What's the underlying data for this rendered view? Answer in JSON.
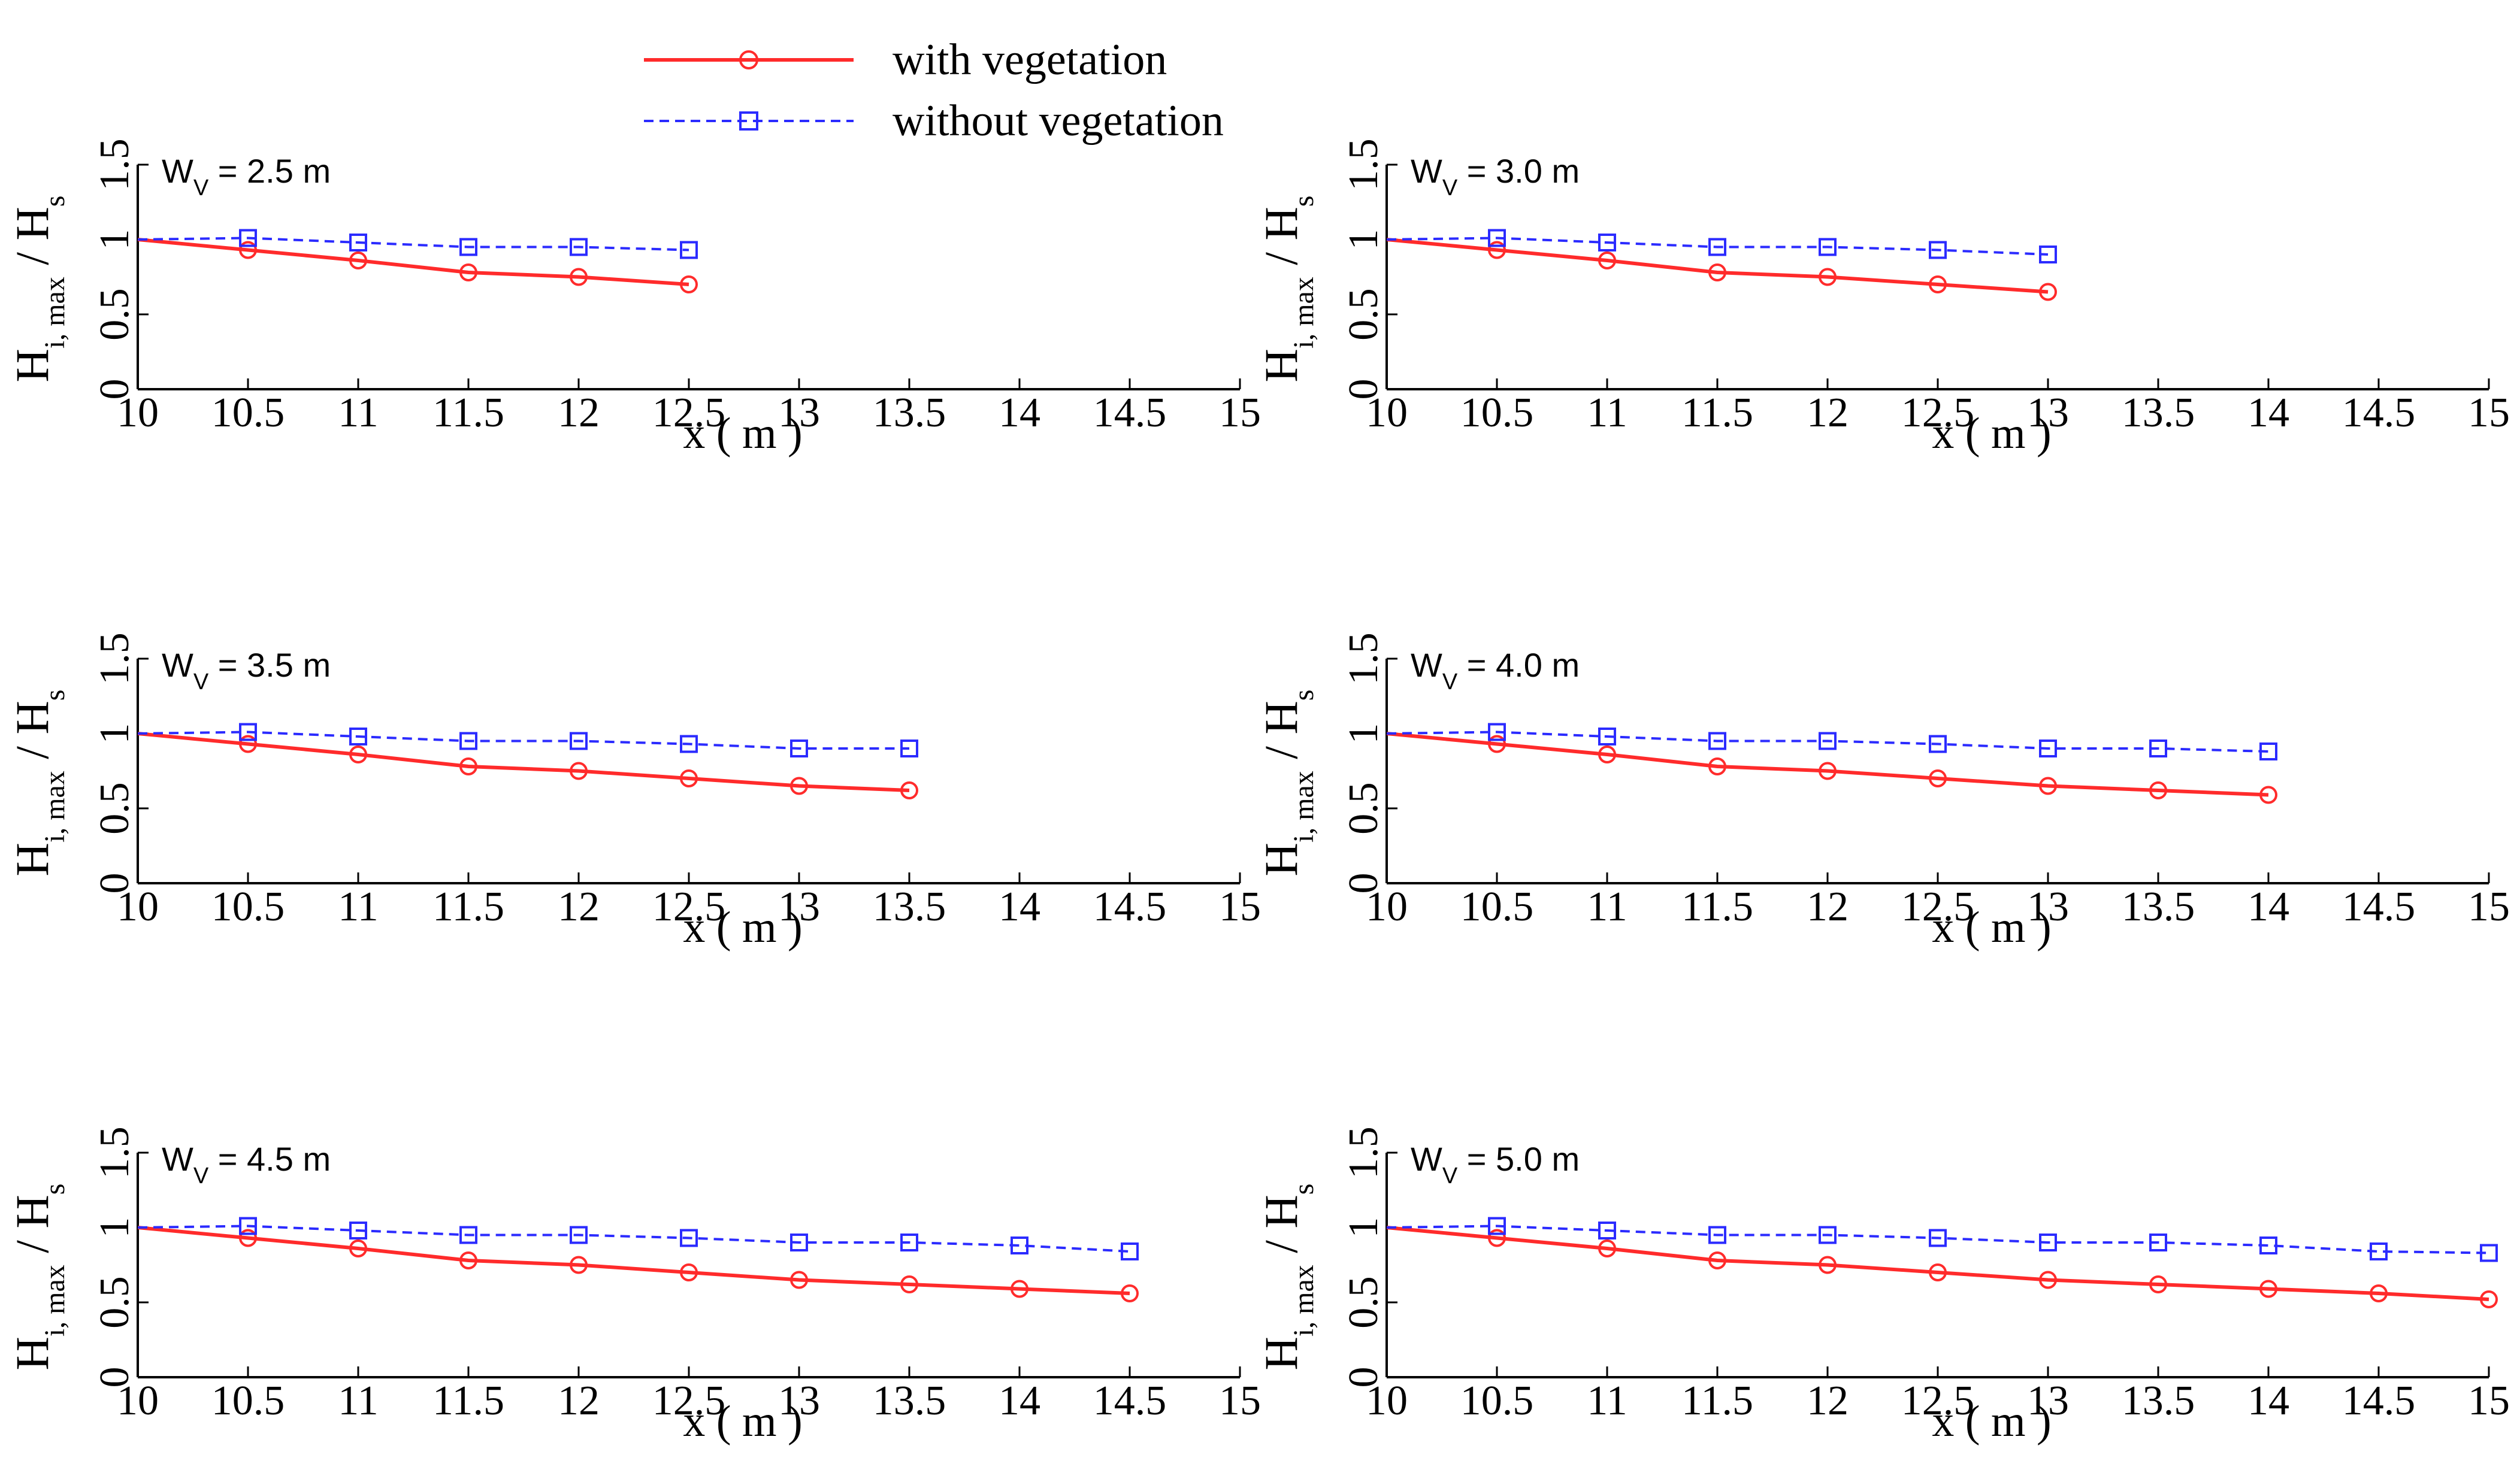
{
  "chart_data": {
    "type": "line",
    "legend": {
      "position": "top",
      "entries": [
        {
          "name": "with vegetation",
          "color": "#ff2b2b",
          "marker": "circle",
          "line": "solid"
        },
        {
          "name": "without vegetation",
          "color": "#2b2bff",
          "marker": "square",
          "line": "dashed"
        }
      ]
    },
    "panels": [
      {
        "title_main": "W",
        "title_sub": "V",
        "title_value": " = 2.5 m",
        "xlabel": "x ( m )",
        "ylabel_main": "H",
        "ylabel_sub": "i, max",
        "ylabel_mid": " / H",
        "ylabel_sub2": "s",
        "xlim": [
          10,
          15
        ],
        "ylim": [
          0,
          1.5
        ],
        "xticks": [
          "10",
          "10.5",
          "11",
          "11.5",
          "12",
          "12.5",
          "13",
          "13.5",
          "14",
          "14.5",
          "15"
        ],
        "yticks": [
          "0",
          "0.5",
          "1",
          "1.5"
        ],
        "series": [
          {
            "name": "with vegetation",
            "x": [
              10,
              10.5,
              11,
              11.5,
              12,
              12.5
            ],
            "y": [
              1.0,
              0.93,
              0.86,
              0.78,
              0.75,
              0.7
            ]
          },
          {
            "name": "without vegetation",
            "x": [
              10,
              10.5,
              11,
              11.5,
              12,
              12.5
            ],
            "y": [
              1.0,
              1.01,
              0.98,
              0.95,
              0.95,
              0.93
            ]
          }
        ]
      },
      {
        "title_main": "W",
        "title_sub": "V",
        "title_value": " = 3.0 m",
        "xlabel": "x ( m )",
        "ylabel_main": "H",
        "ylabel_sub": "i, max",
        "ylabel_mid": " / H",
        "ylabel_sub2": "s",
        "xlim": [
          10,
          15
        ],
        "ylim": [
          0,
          1.5
        ],
        "xticks": [
          "10",
          "10.5",
          "11",
          "11.5",
          "12",
          "12.5",
          "13",
          "13.5",
          "14",
          "14.5",
          "15"
        ],
        "yticks": [
          "0",
          "0.5",
          "1",
          "1.5"
        ],
        "series": [
          {
            "name": "with vegetation",
            "x": [
              10,
              10.5,
              11,
              11.5,
              12,
              12.5,
              13
            ],
            "y": [
              1.0,
              0.93,
              0.86,
              0.78,
              0.75,
              0.7,
              0.65
            ]
          },
          {
            "name": "without vegetation",
            "x": [
              10,
              10.5,
              11,
              11.5,
              12,
              12.5,
              13
            ],
            "y": [
              1.0,
              1.01,
              0.98,
              0.95,
              0.95,
              0.93,
              0.9
            ]
          }
        ]
      },
      {
        "title_main": "W",
        "title_sub": "V",
        "title_value": " = 3.5 m",
        "xlabel": "x ( m )",
        "ylabel_main": "H",
        "ylabel_sub": "i, max",
        "ylabel_mid": " / H",
        "ylabel_sub2": "s",
        "xlim": [
          10,
          15
        ],
        "ylim": [
          0,
          1.5
        ],
        "xticks": [
          "10",
          "10.5",
          "11",
          "11.5",
          "12",
          "12.5",
          "13",
          "13.5",
          "14",
          "14.5",
          "15"
        ],
        "yticks": [
          "0",
          "0.5",
          "1",
          "1.5"
        ],
        "series": [
          {
            "name": "with vegetation",
            "x": [
              10,
              10.5,
              11,
              11.5,
              12,
              12.5,
              13,
              13.5
            ],
            "y": [
              1.0,
              0.93,
              0.86,
              0.78,
              0.75,
              0.7,
              0.65,
              0.62
            ]
          },
          {
            "name": "without vegetation",
            "x": [
              10,
              10.5,
              11,
              11.5,
              12,
              12.5,
              13,
              13.5
            ],
            "y": [
              1.0,
              1.01,
              0.98,
              0.95,
              0.95,
              0.93,
              0.9,
              0.9
            ]
          }
        ]
      },
      {
        "title_main": "W",
        "title_sub": "V",
        "title_value": " = 4.0 m",
        "xlabel": "x ( m )",
        "ylabel_main": "H",
        "ylabel_sub": "i, max",
        "ylabel_mid": " / H",
        "ylabel_sub2": "s",
        "xlim": [
          10,
          15
        ],
        "ylim": [
          0,
          1.5
        ],
        "xticks": [
          "10",
          "10.5",
          "11",
          "11.5",
          "12",
          "12.5",
          "13",
          "13.5",
          "14",
          "14.5",
          "15"
        ],
        "yticks": [
          "0",
          "0.5",
          "1",
          "1.5"
        ],
        "series": [
          {
            "name": "with vegetation",
            "x": [
              10,
              10.5,
              11,
              11.5,
              12,
              12.5,
              13,
              13.5,
              14
            ],
            "y": [
              1.0,
              0.93,
              0.86,
              0.78,
              0.75,
              0.7,
              0.65,
              0.62,
              0.59
            ]
          },
          {
            "name": "without vegetation",
            "x": [
              10,
              10.5,
              11,
              11.5,
              12,
              12.5,
              13,
              13.5,
              14
            ],
            "y": [
              1.0,
              1.01,
              0.98,
              0.95,
              0.95,
              0.93,
              0.9,
              0.9,
              0.88
            ]
          }
        ]
      },
      {
        "title_main": "W",
        "title_sub": "V",
        "title_value": " = 4.5 m",
        "xlabel": "x ( m )",
        "ylabel_main": "H",
        "ylabel_sub": "i, max",
        "ylabel_mid": " / H",
        "ylabel_sub2": "s",
        "xlim": [
          10,
          15
        ],
        "ylim": [
          0,
          1.5
        ],
        "xticks": [
          "10",
          "10.5",
          "11",
          "11.5",
          "12",
          "12.5",
          "13",
          "13.5",
          "14",
          "14.5",
          "15"
        ],
        "yticks": [
          "0",
          "0.5",
          "1",
          "1.5"
        ],
        "series": [
          {
            "name": "with vegetation",
            "x": [
              10,
              10.5,
              11,
              11.5,
              12,
              12.5,
              13,
              13.5,
              14,
              14.5
            ],
            "y": [
              1.0,
              0.93,
              0.86,
              0.78,
              0.75,
              0.7,
              0.65,
              0.62,
              0.59,
              0.56
            ]
          },
          {
            "name": "without vegetation",
            "x": [
              10,
              10.5,
              11,
              11.5,
              12,
              12.5,
              13,
              13.5,
              14,
              14.5
            ],
            "y": [
              1.0,
              1.01,
              0.98,
              0.95,
              0.95,
              0.93,
              0.9,
              0.9,
              0.88,
              0.84
            ]
          }
        ]
      },
      {
        "title_main": "W",
        "title_sub": "V",
        "title_value": " = 5.0 m",
        "xlabel": "x ( m )",
        "ylabel_main": "H",
        "ylabel_sub": "i, max",
        "ylabel_mid": " / H",
        "ylabel_sub2": "s",
        "xlim": [
          10,
          15
        ],
        "ylim": [
          0,
          1.5
        ],
        "xticks": [
          "10",
          "10.5",
          "11",
          "11.5",
          "12",
          "12.5",
          "13",
          "13.5",
          "14",
          "14.5",
          "15"
        ],
        "yticks": [
          "0",
          "0.5",
          "1",
          "1.5"
        ],
        "series": [
          {
            "name": "with vegetation",
            "x": [
              10,
              10.5,
              11,
              11.5,
              12,
              12.5,
              13,
              13.5,
              14,
              14.5,
              15
            ],
            "y": [
              1.0,
              0.93,
              0.86,
              0.78,
              0.75,
              0.7,
              0.65,
              0.62,
              0.59,
              0.56,
              0.52
            ]
          },
          {
            "name": "without vegetation",
            "x": [
              10,
              10.5,
              11,
              11.5,
              12,
              12.5,
              13,
              13.5,
              14,
              14.5,
              15
            ],
            "y": [
              1.0,
              1.01,
              0.98,
              0.95,
              0.95,
              0.93,
              0.9,
              0.9,
              0.88,
              0.84,
              0.83
            ]
          }
        ]
      }
    ]
  }
}
